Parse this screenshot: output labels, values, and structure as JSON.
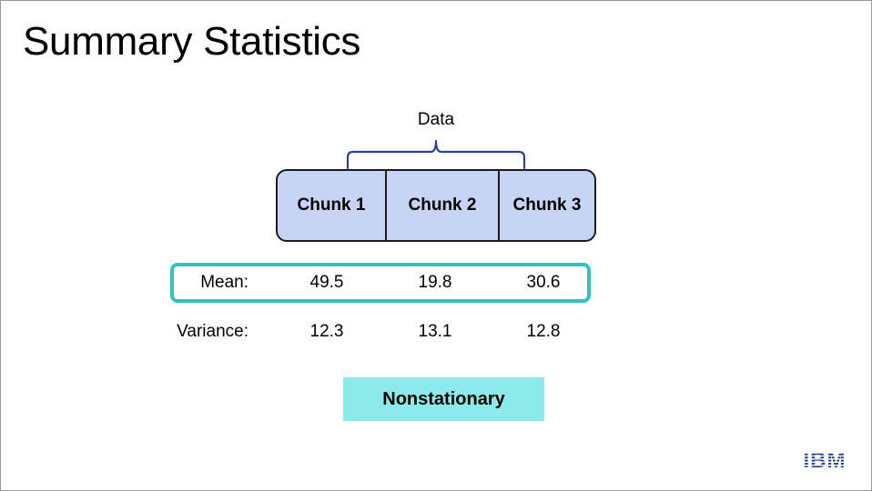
{
  "slide": {
    "title": "Summary Statistics",
    "data_label": "Data",
    "chunks": [
      "Chunk 1",
      "Chunk 2",
      "Chunk 3"
    ],
    "rows": [
      {
        "label": "Mean:",
        "values": [
          "49.5",
          "19.8",
          "30.6"
        ],
        "highlighted": true
      },
      {
        "label": "Variance:",
        "values": [
          "12.3",
          "13.1",
          "12.8"
        ],
        "highlighted": false
      }
    ],
    "conclusion": "Nonstationary",
    "logo": "IBM"
  },
  "colors": {
    "chunk_fill": "#c8d4f4",
    "brace": "#2a3f9e",
    "highlight_border": "#2fc4c0",
    "badge_fill": "#8ceaea",
    "logo": "#1f3f8f"
  }
}
